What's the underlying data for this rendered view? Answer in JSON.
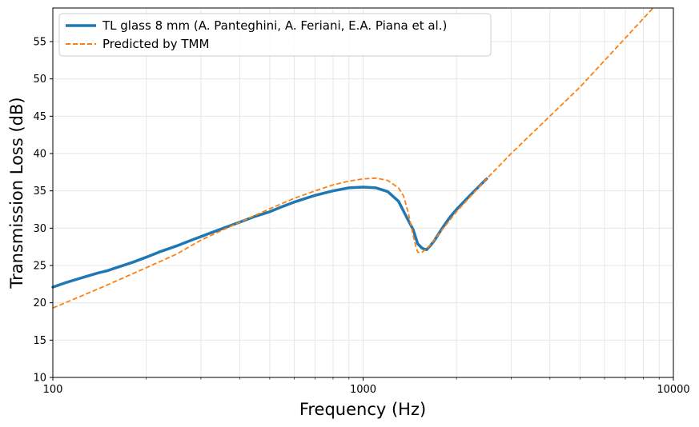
{
  "chart_data": {
    "type": "line",
    "xscale": "log",
    "xlabel": "Frequency (Hz)",
    "ylabel": "Transmission Loss (dB)",
    "xlim": [
      100,
      10000
    ],
    "ylim": [
      10,
      59.5
    ],
    "x_ticks": [
      100,
      1000,
      10000
    ],
    "x_tick_labels": [
      "100",
      "1000",
      "10000"
    ],
    "y_ticks": [
      10,
      15,
      20,
      25,
      30,
      35,
      40,
      45,
      50,
      55
    ],
    "y_tick_labels": [
      "10",
      "15",
      "20",
      "25",
      "30",
      "35",
      "40",
      "45",
      "50",
      "55"
    ],
    "grid": true,
    "legend_position": "top-left",
    "series": [
      {
        "name": "TL glass 8 mm (A. Panteghini, A. Feriani, E.A. Piana et al.)",
        "color": "#1f77b4",
        "style": "solid",
        "x": [
          100,
          110,
          125,
          140,
          150,
          160,
          180,
          200,
          220,
          250,
          280,
          315,
          355,
          400,
          450,
          500,
          550,
          600,
          700,
          800,
          900,
          1000,
          1100,
          1200,
          1300,
          1400,
          1450,
          1500,
          1550,
          1600,
          1650,
          1700,
          1800,
          1900,
          2000,
          2200,
          2500
        ],
        "y": [
          22.1,
          22.7,
          23.4,
          24.0,
          24.3,
          24.7,
          25.4,
          26.1,
          26.8,
          27.6,
          28.4,
          29.2,
          30.0,
          30.8,
          31.6,
          32.2,
          32.9,
          33.5,
          34.4,
          35.0,
          35.4,
          35.5,
          35.4,
          34.9,
          33.6,
          31.0,
          29.8,
          27.9,
          27.3,
          27.1,
          27.7,
          28.4,
          30.0,
          31.4,
          32.5,
          34.3,
          36.6
        ]
      },
      {
        "name": "Predicted by TMM",
        "color": "#ff7f0e",
        "style": "dashed",
        "x": [
          100,
          125,
          150,
          200,
          250,
          300,
          400,
          500,
          600,
          700,
          800,
          900,
          1000,
          1100,
          1200,
          1300,
          1350,
          1400,
          1450,
          1480,
          1500,
          1520,
          1550,
          1600,
          1650,
          1700,
          1800,
          2000,
          2500,
          3000,
          5000,
          8600
        ],
        "y": [
          19.3,
          21.0,
          22.4,
          24.7,
          26.5,
          28.4,
          30.8,
          32.6,
          34.0,
          35.0,
          35.8,
          36.3,
          36.6,
          36.7,
          36.4,
          35.4,
          34.3,
          32.0,
          29.0,
          27.5,
          26.8,
          26.7,
          26.8,
          27.2,
          27.8,
          28.5,
          29.8,
          32.2,
          36.6,
          40.0,
          48.9,
          59.5
        ]
      }
    ]
  }
}
